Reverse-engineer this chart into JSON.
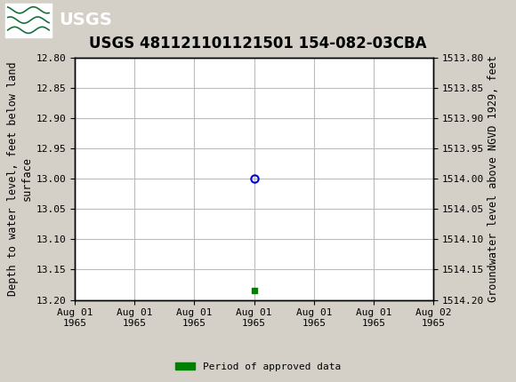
{
  "title": "USGS 481121101121501 154-082-03CBA",
  "ylabel_left": "Depth to water level, feet below land\nsurface",
  "ylabel_right": "Groundwater level above NGVD 1929, feet",
  "ylim_left": [
    12.8,
    13.2
  ],
  "ylim_right": [
    1513.8,
    1514.2
  ],
  "yticks_left": [
    12.8,
    12.85,
    12.9,
    12.95,
    13.0,
    13.05,
    13.1,
    13.15,
    13.2
  ],
  "yticks_right": [
    1513.8,
    1513.85,
    1513.9,
    1513.95,
    1514.0,
    1514.05,
    1514.1,
    1514.15,
    1514.2
  ],
  "data_point_y": 13.0,
  "data_point_color": "#0000cc",
  "bar_y": 13.185,
  "bar_color": "#008000",
  "header_color": "#1a6e3c",
  "header_text_color": "#ffffff",
  "bg_color": "#d4d0c8",
  "grid_color": "#bbbbbb",
  "axis_bg": "#ffffff",
  "font_family": "DejaVu Sans Mono",
  "title_fontsize": 12,
  "tick_fontsize": 8,
  "label_fontsize": 8.5,
  "x_tick_positions": [
    0,
    4,
    8,
    12,
    16,
    20,
    24
  ],
  "x_tick_labels": [
    "Aug 01\n1965",
    "Aug 01\n1965",
    "Aug 01\n1965",
    "Aug 01\n1965",
    "Aug 01\n1965",
    "Aug 01\n1965",
    "Aug 02\n1965"
  ],
  "data_point_x": 12,
  "legend_label": "Period of approved data"
}
